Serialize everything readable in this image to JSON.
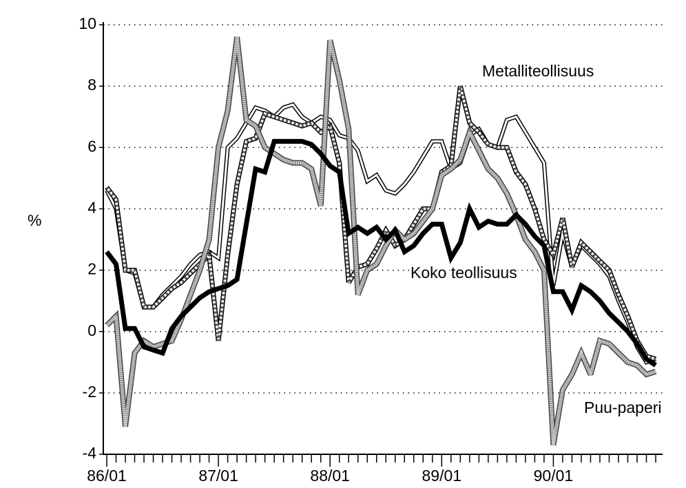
{
  "chart_data": {
    "type": "line",
    "y_label": "%",
    "annotations": [
      "Metalliteollisuus",
      "Koko teollisuus",
      "Puu-paperi"
    ],
    "categories": [
      "86/01",
      null,
      null,
      null,
      null,
      null,
      null,
      null,
      null,
      null,
      null,
      null,
      "87/01",
      null,
      null,
      null,
      null,
      null,
      null,
      null,
      null,
      null,
      null,
      null,
      "88/01",
      null,
      null,
      null,
      null,
      null,
      null,
      null,
      null,
      null,
      null,
      null,
      "89/01",
      null,
      null,
      null,
      null,
      null,
      null,
      null,
      null,
      null,
      null,
      null,
      "90/01",
      null,
      null,
      null,
      null,
      null,
      null,
      null,
      null,
      null,
      null,
      null
    ],
    "ylim": [
      -4,
      10
    ],
    "yticks": [
      -4,
      -2,
      0,
      2,
      4,
      6,
      8,
      10
    ],
    "grid": true,
    "series": [
      {
        "color": "#ffffff",
        "line_style": "double",
        "values": [
          4.6,
          4.0,
          2.0,
          1.9,
          0.8,
          0.8,
          1.2,
          1.5,
          1.8,
          2.2,
          2.5,
          2.6,
          2.4,
          6.0,
          6.3,
          6.8,
          7.3,
          7.2,
          7.0,
          7.3,
          7.4,
          7.0,
          6.8,
          7.0,
          6.9,
          6.4,
          6.3,
          5.9,
          4.9,
          5.1,
          4.6,
          4.5,
          4.8,
          5.2,
          5.7,
          6.2,
          6.2,
          5.3,
          5.5,
          6.4,
          6.6,
          6.1,
          6.0,
          6.9,
          7.0,
          6.5,
          6.0,
          5.5,
          1.5,
          3.2,
          2.1,
          2.8,
          2.5,
          2.2,
          1.8,
          1.0,
          0.3,
          -0.5,
          -1.0,
          -0.9
        ]
      },
      {
        "name": "Metalliteollisuus",
        "color": "#555555",
        "line_style": "hatched",
        "values": [
          4.7,
          4.3,
          2.0,
          2.0,
          0.8,
          0.8,
          1.1,
          1.4,
          1.6,
          1.9,
          2.2,
          2.5,
          -0.3,
          2.5,
          4.8,
          6.2,
          6.3,
          7.1,
          7.0,
          6.9,
          6.8,
          6.7,
          6.8,
          6.5,
          6.7,
          5.5,
          1.6,
          2.1,
          2.2,
          2.7,
          3.3,
          2.8,
          3.0,
          3.5,
          4.0,
          4.0,
          5.2,
          5.4,
          8.0,
          6.8,
          6.5,
          6.1,
          6.0,
          6.0,
          5.2,
          4.8,
          4.0,
          3.0,
          2.5,
          3.7,
          2.1,
          2.9,
          2.6,
          2.3,
          2.0,
          1.2,
          0.5,
          -0.3,
          -0.8,
          -0.9
        ]
      },
      {
        "name": "Puu-paperi",
        "color": "#9a9a9a",
        "line_style": "dotted",
        "values": [
          0.2,
          0.5,
          -3.1,
          -0.7,
          -0.3,
          -0.5,
          -0.4,
          -0.3,
          0.4,
          1.2,
          2.0,
          3.0,
          6.0,
          7.2,
          9.6,
          6.9,
          6.7,
          6.0,
          5.8,
          5.6,
          5.5,
          5.5,
          5.3,
          4.1,
          9.5,
          8.2,
          6.6,
          1.2,
          2.0,
          2.2,
          2.8,
          3.3,
          3.0,
          3.2,
          3.6,
          4.0,
          5.1,
          5.3,
          5.6,
          6.5,
          5.9,
          5.3,
          5.0,
          4.5,
          3.8,
          3.0,
          2.6,
          2.0,
          -3.7,
          -1.9,
          -1.4,
          -0.7,
          -1.4,
          -0.3,
          -0.4,
          -0.7,
          -1.0,
          -1.1,
          -1.4,
          -1.3
        ]
      },
      {
        "name": "Koko teollisuus",
        "color": "#000000",
        "line_style": "solid",
        "values": [
          2.6,
          2.2,
          0.1,
          0.1,
          -0.5,
          -0.6,
          -0.7,
          0.1,
          0.5,
          0.8,
          1.1,
          1.3,
          1.4,
          1.5,
          1.7,
          3.5,
          5.3,
          5.2,
          6.2,
          6.2,
          6.2,
          6.2,
          6.1,
          5.8,
          5.4,
          5.2,
          3.2,
          3.4,
          3.2,
          3.4,
          3.0,
          3.3,
          2.6,
          2.8,
          3.2,
          3.5,
          3.5,
          2.4,
          2.9,
          4.0,
          3.4,
          3.6,
          3.5,
          3.5,
          3.8,
          3.5,
          3.1,
          2.8,
          1.3,
          1.3,
          0.7,
          1.5,
          1.3,
          1.0,
          0.6,
          0.3,
          0,
          -0.4,
          -0.9,
          -1.1
        ]
      }
    ]
  }
}
